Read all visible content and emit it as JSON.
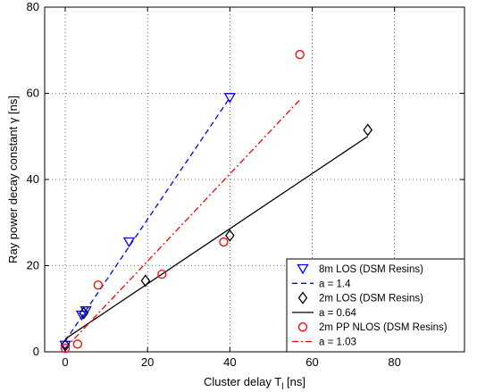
{
  "chart_data": {
    "type": "scatter",
    "title": "",
    "xlabel": "Cluster delay T",
    "xlabel_subscript": "l",
    "xlabel_unit": " [ns]",
    "ylabel": "Ray power decay constant   γ [ns]",
    "xlim": [
      -5,
      97
    ],
    "ylim": [
      0,
      80
    ],
    "xticks": [
      0,
      20,
      40,
      60,
      80
    ],
    "yticks": [
      0,
      20,
      40,
      60,
      80
    ],
    "grid": true,
    "legend_position": "bottom-right",
    "series": [
      {
        "name": "8m LOS (DSM Resins)",
        "marker": "triangle-down",
        "color": "#0000ff",
        "points": [
          [
            0,
            1.5
          ],
          [
            4,
            8.5
          ],
          [
            5,
            9.5
          ],
          [
            15.5,
            25.5
          ],
          [
            40,
            59
          ]
        ]
      },
      {
        "name": "2m LOS (DSM Resins)",
        "marker": "diamond",
        "color": "#000000",
        "points": [
          [
            0,
            1.5
          ],
          [
            4.5,
            9
          ],
          [
            19.5,
            16.5
          ],
          [
            40,
            27
          ],
          [
            73.5,
            51.5
          ]
        ]
      },
      {
        "name": "2m PP NLOS (DSM Resins)",
        "marker": "circle",
        "color": "#ff0000",
        "points": [
          [
            0,
            0.8
          ],
          [
            3,
            1.8
          ],
          [
            8,
            15.5
          ],
          [
            23.5,
            18
          ],
          [
            38.5,
            25.5
          ],
          [
            57,
            69
          ]
        ]
      }
    ],
    "fits": [
      {
        "name": "a = 1.4",
        "color": "#0000ff",
        "dash": "6,4",
        "x": [
          0,
          40
        ],
        "y": [
          2.5,
          59
        ]
      },
      {
        "name": "a = 0.64",
        "color": "#000000",
        "dash": "",
        "x": [
          0,
          73.5
        ],
        "y": [
          3,
          50
        ]
      },
      {
        "name": "a = 1.03",
        "color": "#ff0000",
        "dash": "7,3,2,3",
        "x": [
          0,
          57
        ],
        "y": [
          0.8,
          58.5
        ]
      }
    ]
  }
}
